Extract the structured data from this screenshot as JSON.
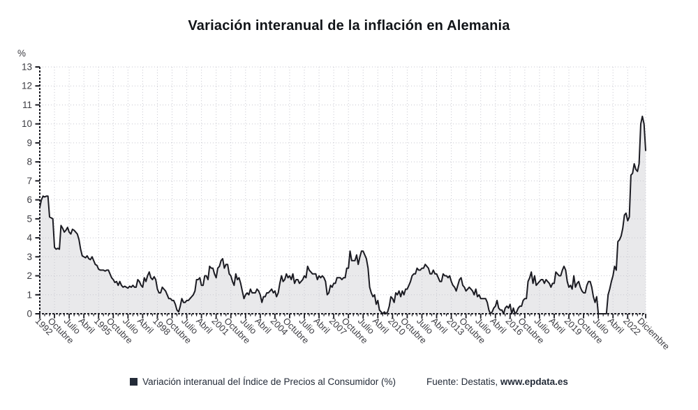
{
  "page": {
    "background": "#ffffff"
  },
  "chart_data": {
    "type": "line",
    "area_fill": true,
    "title": "Variación interanual de la inflación en Alemania",
    "ylabel": "%",
    "xlabel": "",
    "ylim": [
      0,
      13
    ],
    "y_ticks": [
      0,
      1,
      2,
      3,
      4,
      5,
      6,
      7,
      8,
      9,
      10,
      11,
      12,
      13
    ],
    "grid": true,
    "frequency": "monthly",
    "x_start": "Enero 1992",
    "x_end": "Diciembre 2022",
    "x_ticks": [
      {
        "m": 0,
        "label": "1992"
      },
      {
        "m": 9,
        "label": "Octubre"
      },
      {
        "m": 18,
        "label": "Julio"
      },
      {
        "m": 27,
        "label": "Abril"
      },
      {
        "m": 36,
        "label": "1995"
      },
      {
        "m": 45,
        "label": "Octubre"
      },
      {
        "m": 54,
        "label": "Julio"
      },
      {
        "m": 63,
        "label": "Abril"
      },
      {
        "m": 72,
        "label": "1998"
      },
      {
        "m": 81,
        "label": "Octubre"
      },
      {
        "m": 90,
        "label": "Julio"
      },
      {
        "m": 99,
        "label": "Abril"
      },
      {
        "m": 108,
        "label": "2001"
      },
      {
        "m": 117,
        "label": "Octubre"
      },
      {
        "m": 126,
        "label": "Julio"
      },
      {
        "m": 135,
        "label": "Abril"
      },
      {
        "m": 144,
        "label": "2004"
      },
      {
        "m": 153,
        "label": "Octubre"
      },
      {
        "m": 162,
        "label": "Julio"
      },
      {
        "m": 171,
        "label": "Abril"
      },
      {
        "m": 180,
        "label": "2007"
      },
      {
        "m": 189,
        "label": "Octubre"
      },
      {
        "m": 198,
        "label": "Julio"
      },
      {
        "m": 207,
        "label": "Abril"
      },
      {
        "m": 216,
        "label": "2010"
      },
      {
        "m": 225,
        "label": "Octubre"
      },
      {
        "m": 234,
        "label": "Julio"
      },
      {
        "m": 243,
        "label": "Abril"
      },
      {
        "m": 252,
        "label": "2013"
      },
      {
        "m": 261,
        "label": "Octubre"
      },
      {
        "m": 270,
        "label": "Julio"
      },
      {
        "m": 279,
        "label": "Abril"
      },
      {
        "m": 288,
        "label": "2016"
      },
      {
        "m": 297,
        "label": "Octubre"
      },
      {
        "m": 306,
        "label": "Julio"
      },
      {
        "m": 315,
        "label": "Abril"
      },
      {
        "m": 324,
        "label": "2019"
      },
      {
        "m": 333,
        "label": "Octubre"
      },
      {
        "m": 342,
        "label": "Julio"
      },
      {
        "m": 351,
        "label": "Abril"
      },
      {
        "m": 360,
        "label": "2022"
      },
      {
        "m": 371,
        "label": "Diciembre"
      }
    ],
    "series_name": "Variación interanual del Índice de Precios al Consumidor (%)",
    "values_by_year": {
      "1992": [
        5.6,
        6.0,
        6.2,
        6.15,
        6.2,
        6.2,
        5.1,
        5.05,
        5.0,
        3.5,
        3.4,
        3.45
      ],
      "1993": [
        3.4,
        4.65,
        4.5,
        4.3,
        4.4,
        4.55,
        4.3,
        4.2,
        4.45,
        4.4,
        4.3,
        4.2
      ],
      "1994": [
        3.9,
        3.4,
        3.05,
        3.0,
        2.95,
        3.05,
        2.9,
        2.85,
        3.0,
        2.8,
        2.6,
        2.55
      ],
      "1995": [
        2.35,
        2.3,
        2.3,
        2.3,
        2.25,
        2.3,
        2.3,
        2.1,
        1.9,
        1.8,
        1.65,
        1.7
      ],
      "1996": [
        1.5,
        1.7,
        1.5,
        1.4,
        1.45,
        1.4,
        1.35,
        1.45,
        1.4,
        1.5,
        1.4,
        1.4
      ],
      "1997": [
        1.8,
        1.7,
        1.5,
        1.4,
        1.9,
        1.7,
        2.0,
        2.2,
        1.9,
        1.8,
        1.95,
        1.8
      ],
      "1998": [
        1.3,
        1.1,
        1.1,
        1.4,
        1.3,
        1.2,
        1.0,
        0.8,
        0.8,
        0.7,
        0.7,
        0.5
      ],
      "1999": [
        0.2,
        0.1,
        0.4,
        0.8,
        0.6,
        0.6,
        0.7,
        0.7,
        0.8,
        0.9,
        1.0,
        1.2
      ],
      "2000": [
        1.8,
        1.8,
        1.9,
        1.5,
        1.5,
        2.0,
        2.0,
        1.8,
        2.5,
        2.4,
        2.4,
        2.1
      ],
      "2001": [
        1.9,
        2.4,
        2.5,
        2.8,
        2.9,
        2.4,
        2.6,
        2.6,
        2.1,
        2.0,
        1.7,
        1.5
      ],
      "2002": [
        2.1,
        1.8,
        1.9,
        1.6,
        1.2,
        0.8,
        1.0,
        1.1,
        1.0,
        1.3,
        1.1,
        1.1
      ],
      "2003": [
        1.1,
        1.3,
        1.2,
        1.0,
        0.6,
        0.9,
        0.9,
        1.1,
        1.1,
        1.2,
        1.3,
        1.1
      ],
      "2004": [
        1.2,
        0.9,
        1.1,
        1.6,
        2.0,
        1.7,
        1.8,
        2.1,
        1.9,
        2.0,
        1.8,
        2.1
      ],
      "2005": [
        1.6,
        1.8,
        1.8,
        1.6,
        1.7,
        1.8,
        2.0,
        1.9,
        2.5,
        2.3,
        2.2,
        2.1
      ],
      "2006": [
        2.1,
        2.1,
        1.8,
        2.0,
        1.9,
        2.0,
        1.9,
        1.7,
        1.0,
        1.1,
        1.5,
        1.4
      ],
      "2007": [
        1.6,
        1.6,
        1.9,
        1.9,
        1.9,
        1.8,
        1.9,
        1.9,
        2.4,
        2.4,
        3.3,
        2.8
      ],
      "2008": [
        2.8,
        2.8,
        3.1,
        2.6,
        3.0,
        3.3,
        3.3,
        3.1,
        2.9,
        2.4,
        1.4,
        1.1
      ],
      "2009": [
        0.9,
        1.0,
        0.5,
        0.7,
        0.2,
        0.1,
        0.0,
        0.1,
        0.0,
        0.1,
        0.4,
        0.9
      ],
      "2010": [
        0.8,
        0.6,
        1.1,
        1.0,
        1.2,
        0.9,
        1.2,
        1.0,
        1.3,
        1.3,
        1.5,
        1.7
      ],
      "2011": [
        2.0,
        2.1,
        2.1,
        2.4,
        2.3,
        2.3,
        2.4,
        2.4,
        2.6,
        2.5,
        2.4,
        2.1
      ],
      "2012": [
        2.1,
        2.3,
        2.1,
        2.1,
        1.9,
        1.7,
        1.7,
        2.1,
        2.0,
        2.0,
        1.9,
        2.0
      ],
      "2013": [
        1.7,
        1.5,
        1.4,
        1.2,
        1.5,
        1.8,
        1.9,
        1.5,
        1.4,
        1.2,
        1.3,
        1.4
      ],
      "2014": [
        1.3,
        1.2,
        1.0,
        1.3,
        0.9,
        1.0,
        0.8,
        0.8,
        0.8,
        0.8,
        0.6,
        0.2
      ],
      "2015": [
        0.0,
        0.1,
        0.3,
        0.4,
        0.7,
        0.3,
        0.2,
        0.2,
        0.0,
        0.3,
        0.4,
        0.3
      ],
      "2016": [
        0.5,
        0.0,
        0.3,
        0.0,
        0.1,
        0.3,
        0.4,
        0.4,
        0.7,
        0.8,
        0.8,
        1.7
      ],
      "2017": [
        1.9,
        2.2,
        1.6,
        2.0,
        1.5,
        1.6,
        1.7,
        1.8,
        1.8,
        1.6,
        1.8,
        1.7
      ],
      "2018": [
        1.6,
        1.4,
        1.6,
        1.6,
        2.2,
        2.1,
        2.0,
        2.0,
        2.3,
        2.5,
        2.3,
        1.7
      ],
      "2019": [
        1.4,
        1.5,
        1.3,
        2.0,
        1.4,
        1.6,
        1.7,
        1.4,
        1.2,
        1.1,
        1.1,
        1.5
      ],
      "2020": [
        1.7,
        1.7,
        1.4,
        0.9,
        0.6,
        0.9,
        0.0,
        0.0,
        0.0,
        0.0,
        0.0,
        0.0
      ],
      "2021": [
        1.0,
        1.3,
        1.7,
        2.0,
        2.5,
        2.3,
        3.8,
        3.9,
        4.1,
        4.5,
        5.2,
        5.3
      ],
      "2022": [
        4.9,
        5.1,
        7.3,
        7.4,
        7.9,
        7.6,
        7.5,
        7.9,
        10.0,
        10.4,
        10.0,
        8.6
      ]
    },
    "colors": {
      "line": "#1b1b22",
      "fill": "#e9e9eb",
      "grid": "#c7c7d0",
      "axis": "#1b1b22",
      "tick_label": "#3c3c42"
    }
  },
  "legend": {
    "label": "Variación interanual del Índice de Precios al Consumidor (%)",
    "swatch_color": "#232b38"
  },
  "source": {
    "prefix": "Fuente: Destatis, ",
    "site": "www.epdata.es"
  }
}
